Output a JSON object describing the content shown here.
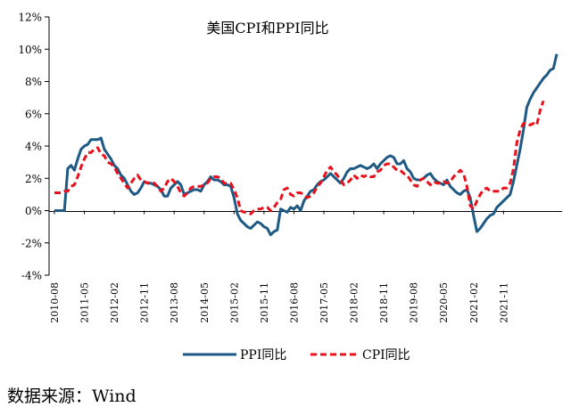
{
  "source_text": "数据来源：Wind",
  "chart_data": {
    "type": "line",
    "title": "美国CPI和PPI同比",
    "xlabel": "",
    "ylabel": "",
    "ylim": [
      -4,
      12
    ],
    "yticks": [
      -4,
      -2,
      0,
      2,
      4,
      6,
      8,
      10,
      12
    ],
    "ytick_labels": [
      "-4%",
      "-2%",
      "0%",
      "2%",
      "4%",
      "6%",
      "8%",
      "10%",
      "12%"
    ],
    "xtick_labels": [
      "2010-08",
      "2011-05",
      "2012-02",
      "2012-11",
      "2013-08",
      "2014-05",
      "2015-02",
      "2015-11",
      "2016-08",
      "2017-05",
      "2018-02",
      "2018-11",
      "2019-08",
      "2020-05",
      "2021-02",
      "2021-11"
    ],
    "grid": false,
    "legend_position": "bottom",
    "series": [
      {
        "name": "PPI同比",
        "color": "#1f5a85",
        "style": "solid",
        "values": [
          0,
          0,
          0,
          0,
          2.6,
          2.8,
          2.5,
          3.2,
          3.8,
          4.0,
          4.1,
          4.4,
          4.4,
          4.4,
          4.5,
          3.8,
          3.5,
          3.2,
          2.8,
          2.6,
          2.2,
          2.0,
          1.6,
          1.2,
          1.0,
          1.1,
          1.4,
          1.8,
          1.7,
          1.7,
          1.6,
          1.5,
          1.3,
          0.9,
          0.9,
          1.4,
          1.6,
          1.8,
          1.6,
          1.0,
          1.1,
          1.2,
          1.3,
          1.3,
          1.2,
          1.6,
          1.8,
          2.1,
          1.9,
          1.9,
          1.8,
          1.6,
          1.6,
          1.5,
          0.8,
          -0.2,
          -0.6,
          -0.8,
          -1.0,
          -1.1,
          -0.9,
          -0.7,
          -0.8,
          -1.0,
          -1.1,
          -1.5,
          -1.3,
          -1.2,
          0.1,
          0.0,
          -0.1,
          0.2,
          0.1,
          0.3,
          0.0,
          0.6,
          0.9,
          1.2,
          1.3,
          1.6,
          1.8,
          1.9,
          2.1,
          2.3,
          2.1,
          1.9,
          1.7,
          2.0,
          2.4,
          2.6,
          2.6,
          2.7,
          2.8,
          2.7,
          2.6,
          2.7,
          2.9,
          2.6,
          2.9,
          3.1,
          3.3,
          3.4,
          3.3,
          2.9,
          2.9,
          3.1,
          2.6,
          2.4,
          2.0,
          1.9,
          1.9,
          2.0,
          2.2,
          2.3,
          2.0,
          1.8,
          1.7,
          1.6,
          1.9,
          1.5,
          1.3,
          1.1,
          1.0,
          1.2,
          1.3,
          0.8,
          -0.3,
          -1.3,
          -1.1,
          -0.8,
          -0.5,
          -0.3,
          -0.2,
          0.2,
          0.4,
          0.6,
          0.8,
          1.0,
          1.8,
          2.8,
          3.8,
          5.0,
          6.4,
          6.9,
          7.3,
          7.6,
          7.9,
          8.2,
          8.4,
          8.7,
          8.8,
          9.7
        ]
      },
      {
        "name": "CPI同比",
        "color": "#e8111c",
        "style": "dashed",
        "values": [
          1.1,
          1.1,
          1.1,
          1.2,
          1.2,
          1.5,
          1.6,
          2.1,
          2.7,
          3.2,
          3.6,
          3.6,
          3.8,
          3.9,
          3.5,
          3.4,
          3.0,
          2.9,
          2.7,
          2.3,
          2.0,
          1.7,
          1.4,
          1.7,
          2.0,
          2.2,
          1.9,
          1.8,
          1.7,
          1.8,
          1.7,
          1.5,
          1.2,
          1.4,
          1.8,
          2.0,
          1.8,
          1.5,
          1.1,
          0.9,
          1.1,
          1.4,
          1.5,
          1.5,
          1.5,
          1.6,
          1.7,
          2.0,
          2.1,
          2.1,
          2.0,
          1.7,
          1.7,
          1.7,
          1.3,
          0.8,
          0.0,
          -0.1,
          -0.1,
          -0.2,
          0.0,
          0.1,
          0.1,
          0.2,
          0.2,
          0.0,
          0.2,
          0.5,
          0.7,
          1.3,
          1.4,
          1.0,
          0.9,
          1.1,
          1.1,
          1.0,
          0.8,
          0.9,
          1.1,
          1.5,
          1.7,
          2.1,
          2.5,
          2.7,
          2.4,
          2.2,
          1.9,
          1.6,
          1.7,
          1.9,
          2.2,
          2.0,
          2.2,
          2.1,
          2.2,
          2.1,
          2.1,
          2.4,
          2.5,
          2.8,
          2.9,
          2.9,
          2.7,
          2.5,
          2.5,
          2.3,
          2.2,
          1.9,
          1.6,
          1.5,
          1.9,
          2.0,
          1.8,
          1.6,
          1.8,
          1.7,
          1.7,
          1.8,
          1.7,
          1.8,
          2.1,
          2.3,
          2.5,
          2.3,
          1.5,
          0.3,
          0.1,
          0.6,
          1.0,
          1.3,
          1.4,
          1.2,
          1.2,
          1.2,
          1.2,
          1.4,
          1.4,
          1.7,
          2.6,
          4.2,
          5.0,
          5.4,
          5.4,
          5.3,
          5.4,
          5.3,
          6.2,
          6.8
        ]
      }
    ]
  }
}
